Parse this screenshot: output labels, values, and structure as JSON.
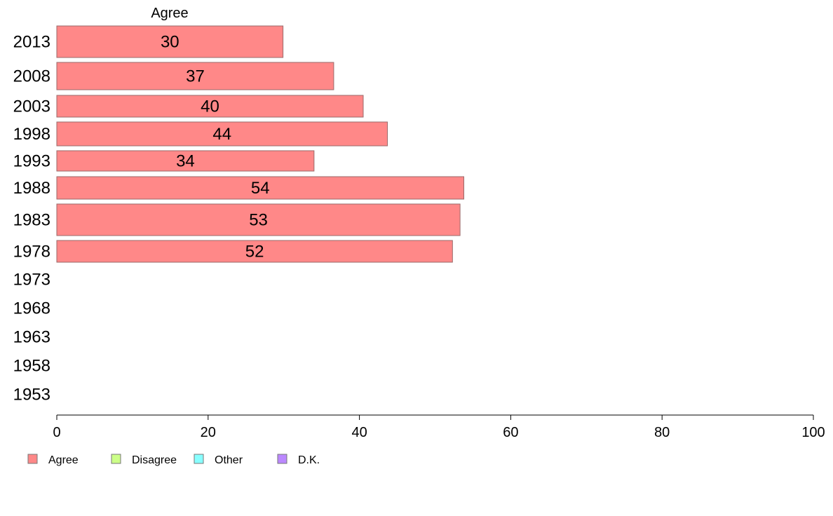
{
  "chart_data": {
    "type": "bar",
    "orientation": "horizontal",
    "panel_title": "Agree",
    "categories": [
      "2013",
      "2008",
      "2003",
      "1998",
      "1993",
      "1988",
      "1983",
      "1978",
      "1973",
      "1968",
      "1963",
      "1958",
      "1953"
    ],
    "series": [
      {
        "name": "Agree",
        "color": "#ff8888",
        "values": [
          30,
          37,
          40,
          44,
          34,
          54,
          53,
          52,
          null,
          null,
          null,
          null,
          null
        ]
      }
    ],
    "value_labels": [
      "30",
      "37",
      "40",
      "44",
      "34",
      "54",
      "53",
      "52",
      "",
      "",
      "",
      "",
      ""
    ],
    "x_values": [
      29.9,
      36.6,
      40.5,
      43.7,
      34.0,
      53.8,
      53.3,
      52.3,
      null,
      null,
      null,
      null,
      null
    ],
    "xlim": [
      0,
      100
    ],
    "x_ticks": [
      "0",
      "20",
      "40",
      "60",
      "80",
      "100"
    ],
    "xlabel": "",
    "ylabel": "",
    "grid": false,
    "legend": {
      "position": "bottom-left",
      "items": [
        {
          "label": "Agree",
          "color": "#ff8888"
        },
        {
          "label": "Disagree",
          "color": "#ccff88"
        },
        {
          "label": "Other",
          "color": "#88ffff"
        },
        {
          "label": "D.K.",
          "color": "#bb88ff"
        }
      ]
    }
  }
}
